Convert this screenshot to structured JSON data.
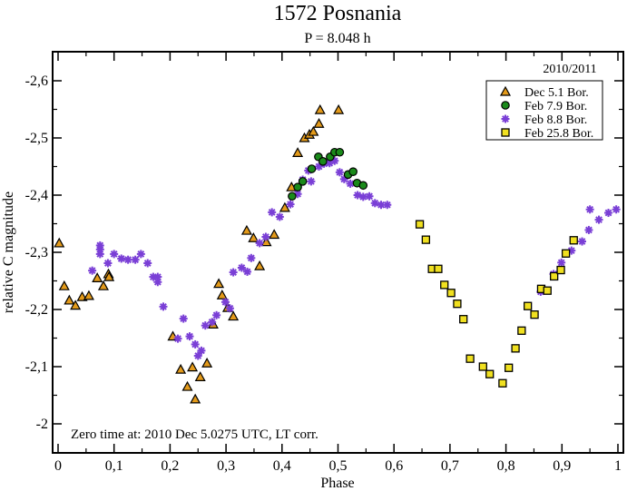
{
  "chart_data": {
    "type": "scatter",
    "title": "1572 Posnania",
    "subtitle": "P = 8.048 h",
    "xlabel": "Phase",
    "ylabel": "relative C magnitude",
    "xlim": [
      0,
      1
    ],
    "ylim": [
      -2.6,
      -2.0
    ],
    "y_inverted": true,
    "x_ticks": [
      0,
      0.1,
      0.2,
      0.3,
      0.4,
      0.5,
      0.6,
      0.7,
      0.8,
      0.9,
      1
    ],
    "x_tick_labels": [
      "0",
      "0,1",
      "0,2",
      "0,3",
      "0,4",
      "0,5",
      "0,6",
      "0,7",
      "0,8",
      "0,9",
      "1"
    ],
    "y_ticks": [
      -2.6,
      -2.5,
      -2.4,
      -2.3,
      -2.2,
      -2.1,
      -2.0
    ],
    "y_tick_labels": [
      "-2,6",
      "-2,5",
      "-2,4",
      "-2,3",
      "-2,2",
      "-2,1",
      "-2"
    ],
    "grid": false,
    "legend": {
      "title": "2010/2011",
      "position": "top-right"
    },
    "annotation": "Zero time at: 2010 Dec 5.0275 UTC, LT corr.",
    "series": [
      {
        "name": "Dec 5.1 Bor.",
        "marker": "triangle",
        "color": "#e39a1a",
        "points": [
          [
            0.002,
            -2.316
          ],
          [
            0.011,
            -2.241
          ],
          [
            0.02,
            -2.216
          ],
          [
            0.031,
            -2.207
          ],
          [
            0.043,
            -2.222
          ],
          [
            0.055,
            -2.224
          ],
          [
            0.07,
            -2.255
          ],
          [
            0.081,
            -2.241
          ],
          [
            0.09,
            -2.262
          ],
          [
            0.091,
            -2.257
          ],
          [
            0.205,
            -2.153
          ],
          [
            0.219,
            -2.095
          ],
          [
            0.231,
            -2.065
          ],
          [
            0.24,
            -2.099
          ],
          [
            0.245,
            -2.043
          ],
          [
            0.254,
            -2.082
          ],
          [
            0.266,
            -2.106
          ],
          [
            0.277,
            -2.174
          ],
          [
            0.287,
            -2.245
          ],
          [
            0.293,
            -2.225
          ],
          [
            0.303,
            -2.203
          ],
          [
            0.313,
            -2.188
          ],
          [
            0.337,
            -2.338
          ],
          [
            0.349,
            -2.325
          ],
          [
            0.36,
            -2.276
          ],
          [
            0.372,
            -2.318
          ],
          [
            0.386,
            -2.331
          ],
          [
            0.405,
            -2.378
          ],
          [
            0.417,
            -2.414
          ],
          [
            0.428,
            -2.474
          ],
          [
            0.44,
            -2.5
          ],
          [
            0.449,
            -2.506
          ],
          [
            0.456,
            -2.511
          ],
          [
            0.466,
            -2.525
          ],
          [
            0.468,
            -2.549
          ],
          [
            0.501,
            -2.549
          ]
        ]
      },
      {
        "name": "Feb 7.9 Bor.",
        "marker": "circle",
        "color": "#1a8a1a",
        "points": [
          [
            0.418,
            -2.398
          ],
          [
            0.428,
            -2.414
          ],
          [
            0.437,
            -2.424
          ],
          [
            0.453,
            -2.446
          ],
          [
            0.465,
            -2.467
          ],
          [
            0.473,
            -2.459
          ],
          [
            0.486,
            -2.467
          ],
          [
            0.494,
            -2.475
          ],
          [
            0.503,
            -2.475
          ],
          [
            0.518,
            -2.436
          ],
          [
            0.527,
            -2.441
          ],
          [
            0.534,
            -2.421
          ],
          [
            0.545,
            -2.417
          ]
        ]
      },
      {
        "name": "Feb 8.8 Bor.",
        "marker": "star",
        "color": "#7a3fd6",
        "points": [
          [
            0.061,
            -2.268
          ],
          [
            0.075,
            -2.305
          ],
          [
            0.075,
            -2.312
          ],
          [
            0.075,
            -2.297
          ],
          [
            0.089,
            -2.281
          ],
          [
            0.1,
            -2.297
          ],
          [
            0.113,
            -2.289
          ],
          [
            0.125,
            -2.287
          ],
          [
            0.138,
            -2.287
          ],
          [
            0.148,
            -2.297
          ],
          [
            0.16,
            -2.281
          ],
          [
            0.17,
            -2.257
          ],
          [
            0.178,
            -2.257
          ],
          [
            0.178,
            -2.248
          ],
          [
            0.188,
            -2.205
          ],
          [
            0.214,
            -2.149
          ],
          [
            0.224,
            -2.184
          ],
          [
            0.235,
            -2.153
          ],
          [
            0.245,
            -2.139
          ],
          [
            0.25,
            -2.119
          ],
          [
            0.256,
            -2.128
          ],
          [
            0.263,
            -2.172
          ],
          [
            0.275,
            -2.178
          ],
          [
            0.283,
            -2.19
          ],
          [
            0.299,
            -2.213
          ],
          [
            0.307,
            -2.202
          ],
          [
            0.313,
            -2.265
          ],
          [
            0.328,
            -2.273
          ],
          [
            0.338,
            -2.266
          ],
          [
            0.345,
            -2.29
          ],
          [
            0.36,
            -2.316
          ],
          [
            0.371,
            -2.327
          ],
          [
            0.382,
            -2.37
          ],
          [
            0.396,
            -2.362
          ],
          [
            0.415,
            -2.384
          ],
          [
            0.428,
            -2.402
          ],
          [
            0.437,
            -2.427
          ],
          [
            0.447,
            -2.443
          ],
          [
            0.452,
            -2.424
          ],
          [
            0.466,
            -2.45
          ],
          [
            0.475,
            -2.455
          ],
          [
            0.485,
            -2.456
          ],
          [
            0.494,
            -2.46
          ],
          [
            0.503,
            -2.44
          ],
          [
            0.511,
            -2.428
          ],
          [
            0.522,
            -2.42
          ],
          [
            0.535,
            -2.4
          ],
          [
            0.545,
            -2.397
          ],
          [
            0.556,
            -2.398
          ],
          [
            0.566,
            -2.386
          ],
          [
            0.577,
            -2.383
          ],
          [
            0.588,
            -2.383
          ],
          [
            0.862,
            -2.231
          ],
          [
            0.885,
            -2.262
          ],
          [
            0.899,
            -2.282
          ],
          [
            0.917,
            -2.303
          ],
          [
            0.936,
            -2.319
          ],
          [
            0.948,
            -2.339
          ],
          [
            0.95,
            -2.375
          ],
          [
            0.966,
            -2.357
          ],
          [
            0.983,
            -2.369
          ],
          [
            0.997,
            -2.375
          ]
        ]
      },
      {
        "name": "Feb 25.8 Bor.",
        "marker": "square",
        "color": "#f0e020",
        "points": [
          [
            0.646,
            -2.349
          ],
          [
            0.657,
            -2.322
          ],
          [
            0.668,
            -2.271
          ],
          [
            0.679,
            -2.271
          ],
          [
            0.69,
            -2.243
          ],
          [
            0.702,
            -2.229
          ],
          [
            0.713,
            -2.21
          ],
          [
            0.724,
            -2.183
          ],
          [
            0.736,
            -2.114
          ],
          [
            0.759,
            -2.1
          ],
          [
            0.771,
            -2.087
          ],
          [
            0.794,
            -2.071
          ],
          [
            0.805,
            -2.098
          ],
          [
            0.817,
            -2.132
          ],
          [
            0.828,
            -2.163
          ],
          [
            0.839,
            -2.206
          ],
          [
            0.851,
            -2.191
          ],
          [
            0.863,
            -2.236
          ],
          [
            0.874,
            -2.233
          ],
          [
            0.886,
            -2.258
          ],
          [
            0.898,
            -2.269
          ],
          [
            0.907,
            -2.298
          ],
          [
            0.921,
            -2.321
          ]
        ]
      }
    ]
  }
}
